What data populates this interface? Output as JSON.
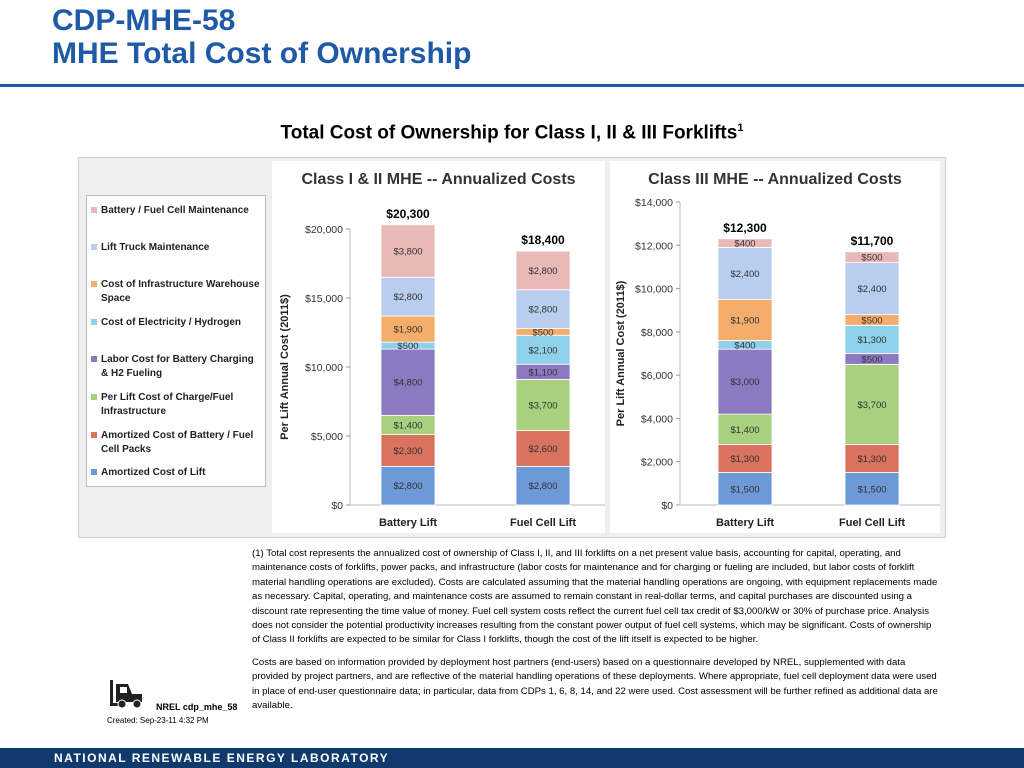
{
  "slide": {
    "title_line1": "CDP-MHE-58",
    "title_line2": "MHE Total Cost of Ownership",
    "chart_heading": "Total Cost of Ownership for Class I, II & III Forklifts",
    "chart_heading_sup": "1",
    "footnote_p1": "(1) Total cost represents the annualized cost of ownership of Class I, II, and III forklifts on a net present value basis, accounting for capital, operating, and maintenance costs of forklifts, power packs, and infrastructure (labor costs for maintenance and for charging or fueling are included, but labor costs of forklift material handling operations are excluded).  Costs are calculated assuming that the material handling operations are ongoing, with equipment replacements made as necessary.  Capital, operating, and maintenance costs are assumed to remain constant in real-dollar terms, and capital purchases are discounted using a discount rate representing the time value of money.  Fuel cell system costs reflect the current fuel cell tax credit of $3,000/kW or 30% of purchase price.  Analysis does not consider the potential productivity increases resulting from the constant power output of fuel cell systems, which may be significant.  Costs of ownership of Class II forklifts are expected to be similar for Class I forklifts, though the cost of the lift itself is expected to be higher.",
    "footnote_p2": "Costs are based on information provided by deployment host partners (end-users) based on a questionnaire developed by NREL, supplemented with data provided by project partners, and are reflective of the material handling operations of these deployments.  Where appropriate, fuel cell deployment data were used in place of end-user questionnaire data; in particular, data from CDPs 1, 6, 8, 14, and 22 were used. Cost assessment will be further refined as additional data are available.",
    "logo_label": "NREL cdp_mhe_58",
    "created": "Created: Sep-23-11 4:32 PM",
    "footer": "NATIONAL RENEWABLE ENERGY LABORATORY",
    "logo_icon": "forklift-icon",
    "accent_color": "#1f5aa8",
    "footer_color": "#0f3a6b"
  },
  "legend": [
    {
      "label": "Battery / Fuel Cell Maintenance",
      "color": "#e8b9b7"
    },
    {
      "label": "Lift Truck Maintenance",
      "color": "#b9cdee"
    },
    {
      "label": "Cost of Infrastructure Warehouse Space",
      "color": "#f4ad6a"
    },
    {
      "label": "Cost of Electricity / Hydrogen",
      "color": "#8fd0ea"
    },
    {
      "label": "Labor Cost for Battery Charging & H2 Fueling",
      "color": "#8c79c2"
    },
    {
      "label": "Per Lift Cost of Charge/Fuel Infrastructure",
      "color": "#a9d07e"
    },
    {
      "label": "Amortized Cost of Battery / Fuel Cell Packs",
      "color": "#d9735f"
    },
    {
      "label": "Amortized Cost of Lift",
      "color": "#6e99d8"
    }
  ],
  "chart_data": [
    {
      "type": "bar",
      "stacked": true,
      "title": "Class I & II MHE -- Annualized Costs",
      "ylabel": "Per Lift Annual Cost (2011$)",
      "ylim": [
        0,
        20000
      ],
      "yticks": [
        0,
        5000,
        10000,
        15000,
        20000
      ],
      "ytick_labels": [
        "$0",
        "$5,000",
        "$10,000",
        "$15,000",
        "$20,000"
      ],
      "categories": [
        "Battery Lift",
        "Fuel Cell Lift"
      ],
      "totals": [
        20300,
        18400
      ],
      "total_labels": [
        "$20,300",
        "$18,400"
      ],
      "series": [
        {
          "name": "Amortized Cost of Lift",
          "color": "#6e99d8",
          "values": [
            2800,
            2800
          ],
          "labels": [
            "$2,800",
            "$2,800"
          ]
        },
        {
          "name": "Amortized Cost of Battery / Fuel Cell Packs",
          "color": "#d9735f",
          "values": [
            2300,
            2600
          ],
          "labels": [
            "$2,300",
            "$2,600"
          ]
        },
        {
          "name": "Per Lift Cost of Charge/Fuel Infrastructure",
          "color": "#a9d07e",
          "values": [
            1400,
            3700
          ],
          "labels": [
            "$1,400",
            "$3,700"
          ]
        },
        {
          "name": "Labor Cost for Battery Charging & H2 Fueling",
          "color": "#8c79c2",
          "values": [
            4800,
            1100
          ],
          "labels": [
            "$4,800",
            "$1,100"
          ]
        },
        {
          "name": "Cost of Electricity / Hydrogen",
          "color": "#8fd0ea",
          "values": [
            500,
            2100
          ],
          "labels": [
            "$500",
            "$2,100"
          ]
        },
        {
          "name": "Cost of Infrastructure Warehouse Space",
          "color": "#f4ad6a",
          "values": [
            1900,
            500
          ],
          "labels": [
            "$1,900",
            "$500"
          ]
        },
        {
          "name": "Lift Truck Maintenance",
          "color": "#b9cdee",
          "values": [
            2800,
            2800
          ],
          "labels": [
            "$2,800",
            "$2,800"
          ]
        },
        {
          "name": "Battery / Fuel Cell Maintenance",
          "color": "#e8b9b7",
          "values": [
            3800,
            2800
          ],
          "labels": [
            "$3,800",
            "$2,800"
          ]
        }
      ]
    },
    {
      "type": "bar",
      "stacked": true,
      "title": "Class III MHE -- Annualized Costs",
      "ylabel": "Per Lift Annual Cost (2011$)",
      "ylim": [
        0,
        14000
      ],
      "yticks": [
        0,
        2000,
        4000,
        6000,
        8000,
        10000,
        12000,
        14000
      ],
      "ytick_labels": [
        "$0",
        "$2,000",
        "$4,000",
        "$6,000",
        "$8,000",
        "$10,000",
        "$12,000",
        "$14,000"
      ],
      "categories": [
        "Battery Lift",
        "Fuel Cell Lift"
      ],
      "totals": [
        12300,
        11700
      ],
      "total_labels": [
        "$12,300",
        "$11,700"
      ],
      "series": [
        {
          "name": "Amortized Cost of Lift",
          "color": "#6e99d8",
          "values": [
            1500,
            1500
          ],
          "labels": [
            "$1,500",
            "$1,500"
          ]
        },
        {
          "name": "Amortized Cost of Battery / Fuel Cell Packs",
          "color": "#d9735f",
          "values": [
            1300,
            1300
          ],
          "labels": [
            "$1,300",
            "$1,300"
          ]
        },
        {
          "name": "Per Lift Cost of Charge/Fuel Infrastructure",
          "color": "#a9d07e",
          "values": [
            1400,
            3700
          ],
          "labels": [
            "$1,400",
            "$3,700"
          ]
        },
        {
          "name": "Labor Cost for Battery Charging & H2 Fueling",
          "color": "#8c79c2",
          "values": [
            3000,
            500
          ],
          "labels": [
            "$3,000",
            "$500"
          ]
        },
        {
          "name": "Cost of Electricity / Hydrogen",
          "color": "#8fd0ea",
          "values": [
            400,
            1300
          ],
          "labels": [
            "$400",
            "$1,300"
          ]
        },
        {
          "name": "Cost of Infrastructure Warehouse Space",
          "color": "#f4ad6a",
          "values": [
            1900,
            500
          ],
          "labels": [
            "$1,900",
            "$500"
          ]
        },
        {
          "name": "Lift Truck Maintenance",
          "color": "#b9cdee",
          "values": [
            2400,
            2400
          ],
          "labels": [
            "$2,400",
            "$2,400"
          ]
        },
        {
          "name": "Battery / Fuel Cell Maintenance",
          "color": "#e8b9b7",
          "values": [
            400,
            500
          ],
          "labels": [
            "$400",
            "$500"
          ]
        }
      ]
    }
  ]
}
